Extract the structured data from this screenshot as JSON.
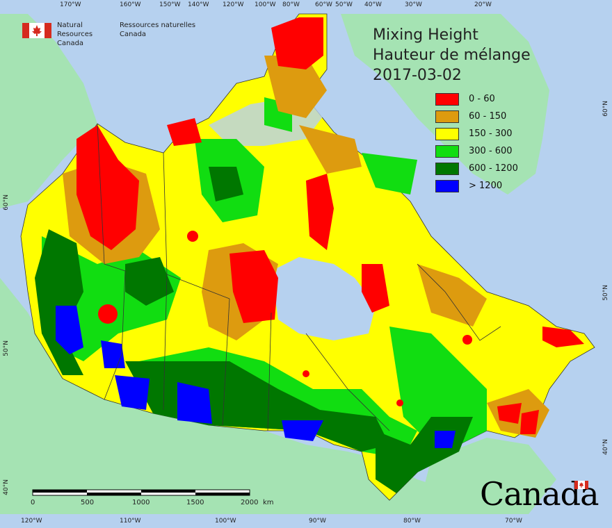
{
  "agency": {
    "name_en_line1": "Natural Resources",
    "name_en_line2": "Canada",
    "name_fr_line1": "Ressources naturelles",
    "name_fr_line2": "Canada"
  },
  "title": {
    "line1": "Mixing Height",
    "line2": "Hauteur de mélange",
    "date": "2017-03-02"
  },
  "legend": [
    {
      "label": "0 - 60",
      "color": "#ff0000"
    },
    {
      "label": "60 - 150",
      "color": "#dd9b0f"
    },
    {
      "label": "150 - 300",
      "color": "#ffff00"
    },
    {
      "label": "300 - 600",
      "color": "#11dd11"
    },
    {
      "label": "600 - 1200",
      "color": "#007700"
    },
    {
      "label": "> 1200",
      "color": "#0000ff"
    }
  ],
  "top_ticks": [
    "170°W",
    "160°W",
    "150°W",
    "140°W",
    "120°W",
    "100°W",
    "80°W",
    "60°W",
    "50°W",
    "40°W",
    "30°W",
    "20°W"
  ],
  "bottom_ticks": [
    "120°W",
    "110°W",
    "100°W",
    "90°W",
    "80°W",
    "70°W"
  ],
  "left_ticks": [
    "60°N",
    "50°N",
    "40°N"
  ],
  "right_ticks": [
    "60°N",
    "50°N",
    "40°N"
  ],
  "scale_bar": {
    "labels": [
      "0",
      "500",
      "1000",
      "1500",
      "2000"
    ],
    "unit": "km"
  },
  "wordmark": "Canada",
  "colors": {
    "ocean": "#b6d1ef",
    "foreign_land": "#a5e3b3",
    "border": "#333333"
  }
}
